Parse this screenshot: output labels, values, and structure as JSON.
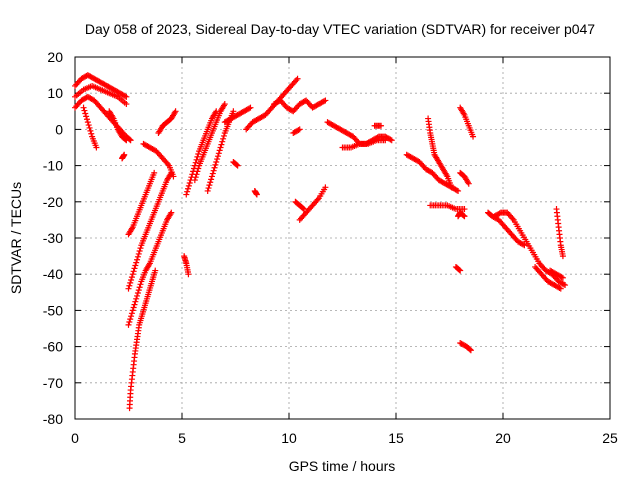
{
  "chart_data": {
    "type": "scatter",
    "title": "Day 058 of 2023, Sidereal Day-to-day VTEC variation (SDTVAR) for receiver p047",
    "xlabel": "GPS time / hours",
    "ylabel": "SDTVAR / TECUs",
    "xlim": [
      0,
      25
    ],
    "ylim": [
      -80,
      20
    ],
    "xticks": [
      "0",
      "5",
      "10",
      "15",
      "20",
      "25"
    ],
    "yticks": [
      "20",
      "10",
      "0",
      "-10",
      "-20",
      "-30",
      "-40",
      "-50",
      "-60",
      "-70",
      "-80"
    ],
    "grid": true,
    "marker": "+",
    "color": "#ff0000",
    "segments": [
      {
        "x": [
          0.0,
          0.3,
          0.6,
          0.9,
          1.2,
          1.5,
          1.8,
          2.1,
          2.4
        ],
        "y": [
          12,
          14,
          15,
          14,
          13,
          12,
          11,
          10,
          9
        ]
      },
      {
        "x": [
          0.0,
          0.4,
          0.8,
          1.2,
          1.6,
          2.0,
          2.4
        ],
        "y": [
          9,
          11,
          12,
          11,
          10,
          9,
          7
        ]
      },
      {
        "x": [
          0.0,
          0.3,
          0.6,
          0.9,
          1.2,
          1.5,
          1.8,
          2.1,
          2.4,
          2.6
        ],
        "y": [
          6,
          8,
          9,
          8,
          6,
          4,
          2,
          0,
          -2,
          -3
        ]
      },
      {
        "x": [
          0.4,
          0.6,
          0.8,
          1.0
        ],
        "y": [
          6,
          2,
          -2,
          -5
        ]
      },
      {
        "x": [
          1.6,
          1.8,
          2.0,
          2.2,
          2.4
        ],
        "y": [
          5,
          3,
          0,
          -2,
          -3
        ]
      },
      {
        "x": [
          2.2,
          2.3
        ],
        "y": [
          -8,
          -7
        ]
      },
      {
        "x": [
          2.5,
          2.7,
          2.9,
          3.1,
          3.3,
          3.5,
          3.7
        ],
        "y": [
          -29,
          -27,
          -24,
          -21,
          -18,
          -15,
          -12
        ]
      },
      {
        "x": [
          2.5,
          2.7,
          2.9,
          3.1,
          3.3,
          3.5,
          3.7,
          3.9,
          4.1,
          4.3,
          4.5
        ],
        "y": [
          -44,
          -40,
          -36,
          -32,
          -29,
          -26,
          -23,
          -20,
          -17,
          -14,
          -12
        ]
      },
      {
        "x": [
          2.5,
          2.7,
          2.9,
          3.1,
          3.3,
          3.5,
          3.7,
          3.9,
          4.1,
          4.3,
          4.5
        ],
        "y": [
          -54,
          -50,
          -46,
          -42,
          -39,
          -37,
          -34,
          -31,
          -28,
          -25,
          -23
        ]
      },
      {
        "x": [
          2.55,
          2.6,
          2.7,
          2.8,
          2.9,
          3.0,
          3.15,
          3.3,
          3.45,
          3.6,
          3.75
        ],
        "y": [
          -77,
          -72,
          -67,
          -62,
          -58,
          -54,
          -51,
          -48,
          -45,
          -42,
          -39
        ]
      },
      {
        "x": [
          3.2,
          3.5,
          3.8,
          4.1,
          4.4,
          4.6
        ],
        "y": [
          -4,
          -5,
          -6,
          -8,
          -10,
          -13
        ]
      },
      {
        "x": [
          3.9,
          4.1,
          4.3,
          4.5,
          4.7
        ],
        "y": [
          -1,
          1,
          2,
          3,
          5
        ]
      },
      {
        "x": [
          5.1,
          5.2,
          5.3
        ],
        "y": [
          -35,
          -37,
          -40
        ]
      },
      {
        "x": [
          5.2,
          5.4,
          5.6,
          5.8,
          6.0,
          6.2,
          6.4,
          6.6
        ],
        "y": [
          -18,
          -14,
          -10,
          -6,
          -3,
          0,
          3,
          5
        ]
      },
      {
        "x": [
          5.6,
          5.8,
          6.0,
          6.2,
          6.4,
          6.6,
          6.8,
          7.0
        ],
        "y": [
          -14,
          -10,
          -7,
          -4,
          -1,
          2,
          5,
          7
        ]
      },
      {
        "x": [
          6.2,
          6.4,
          6.6,
          6.8,
          7.0,
          7.2,
          7.4
        ],
        "y": [
          -17,
          -13,
          -9,
          -5,
          -1,
          2,
          5
        ]
      },
      {
        "x": [
          7.0,
          7.3,
          7.6,
          7.9,
          8.2
        ],
        "y": [
          2,
          3,
          4,
          5,
          6
        ]
      },
      {
        "x": [
          7.4,
          7.6
        ],
        "y": [
          -9,
          -10
        ]
      },
      {
        "x": [
          8.4,
          8.5
        ],
        "y": [
          -17,
          -18
        ]
      },
      {
        "x": [
          8.0,
          8.3,
          8.6,
          8.9,
          9.2,
          9.5,
          9.8,
          10.1,
          10.4
        ],
        "y": [
          0,
          2,
          3,
          4,
          6,
          8,
          10,
          12,
          14
        ]
      },
      {
        "x": [
          9.3,
          9.6,
          9.9,
          10.2,
          10.5,
          10.8,
          11.1,
          11.4,
          11.7
        ],
        "y": [
          7,
          8,
          6,
          5,
          7,
          8,
          6,
          7,
          8
        ]
      },
      {
        "x": [
          10.2,
          10.5
        ],
        "y": [
          -1,
          0
        ]
      },
      {
        "x": [
          10.3,
          10.5,
          10.7
        ],
        "y": [
          -20,
          -21,
          -22
        ]
      },
      {
        "x": [
          10.5,
          10.8,
          11.1,
          11.4,
          11.7
        ],
        "y": [
          -25,
          -23,
          -21,
          -19,
          -16
        ]
      },
      {
        "x": [
          11.8,
          12.1,
          12.4,
          12.7,
          13.0,
          13.3,
          13.6,
          13.9,
          14.2,
          14.5,
          14.8
        ],
        "y": [
          2,
          1,
          0,
          -1,
          -2,
          -4,
          -4,
          -3,
          -2,
          -2,
          -3
        ]
      },
      {
        "x": [
          12.5,
          12.9,
          13.3,
          13.7,
          14.1,
          14.5
        ],
        "y": [
          -5,
          -5,
          -4,
          -4,
          -3,
          -3
        ]
      },
      {
        "x": [
          14.0,
          14.3
        ],
        "y": [
          1,
          1
        ]
      },
      {
        "x": [
          15.5,
          15.8,
          16.1,
          16.4,
          16.7,
          17.0,
          17.3,
          17.6,
          17.9
        ],
        "y": [
          -7,
          -8,
          -9,
          -11,
          -12,
          -14,
          -15,
          -16,
          -17
        ]
      },
      {
        "x": [
          16.5,
          16.6,
          16.7,
          16.8,
          17.0,
          17.2,
          17.4,
          17.6
        ],
        "y": [
          3,
          -1,
          -4,
          -7,
          -9,
          -11,
          -13,
          -16
        ]
      },
      {
        "x": [
          16.6,
          17.0,
          17.4,
          17.8,
          18.2
        ],
        "y": [
          -21,
          -21,
          -21,
          -22,
          -22
        ]
      },
      {
        "x": [
          17.8,
          18.0
        ],
        "y": [
          -38,
          -39
        ]
      },
      {
        "x": [
          17.9,
          18.0,
          18.2
        ],
        "y": [
          -24,
          -23,
          -24
        ]
      },
      {
        "x": [
          18.0,
          18.2,
          18.4
        ],
        "y": [
          -12,
          -13,
          -15
        ]
      },
      {
        "x": [
          18.0,
          18.2,
          18.4,
          18.6
        ],
        "y": [
          6,
          4,
          1,
          -2
        ]
      },
      {
        "x": [
          18.0,
          18.3,
          18.5
        ],
        "y": [
          -59,
          -60,
          -61
        ]
      },
      {
        "x": [
          19.3,
          19.5,
          19.8,
          20.1,
          20.4,
          20.7,
          21.0
        ],
        "y": [
          -23,
          -24,
          -25,
          -27,
          -29,
          -31,
          -32
        ]
      },
      {
        "x": [
          19.6,
          19.9,
          20.2,
          20.5,
          20.8,
          21.1,
          21.4,
          21.7,
          22.0,
          22.3,
          22.6,
          22.9
        ],
        "y": [
          -24,
          -23,
          -23,
          -25,
          -28,
          -31,
          -34,
          -37,
          -39,
          -40,
          -42,
          -43
        ]
      },
      {
        "x": [
          21.5,
          21.8,
          22.1,
          22.4,
          22.7
        ],
        "y": [
          -38,
          -40,
          -42,
          -43,
          -44
        ]
      },
      {
        "x": [
          22.2,
          22.5,
          22.8
        ],
        "y": [
          -39,
          -40,
          -41
        ]
      },
      {
        "x": [
          22.5,
          22.6,
          22.7,
          22.8
        ],
        "y": [
          -22,
          -27,
          -32,
          -35
        ]
      }
    ]
  }
}
